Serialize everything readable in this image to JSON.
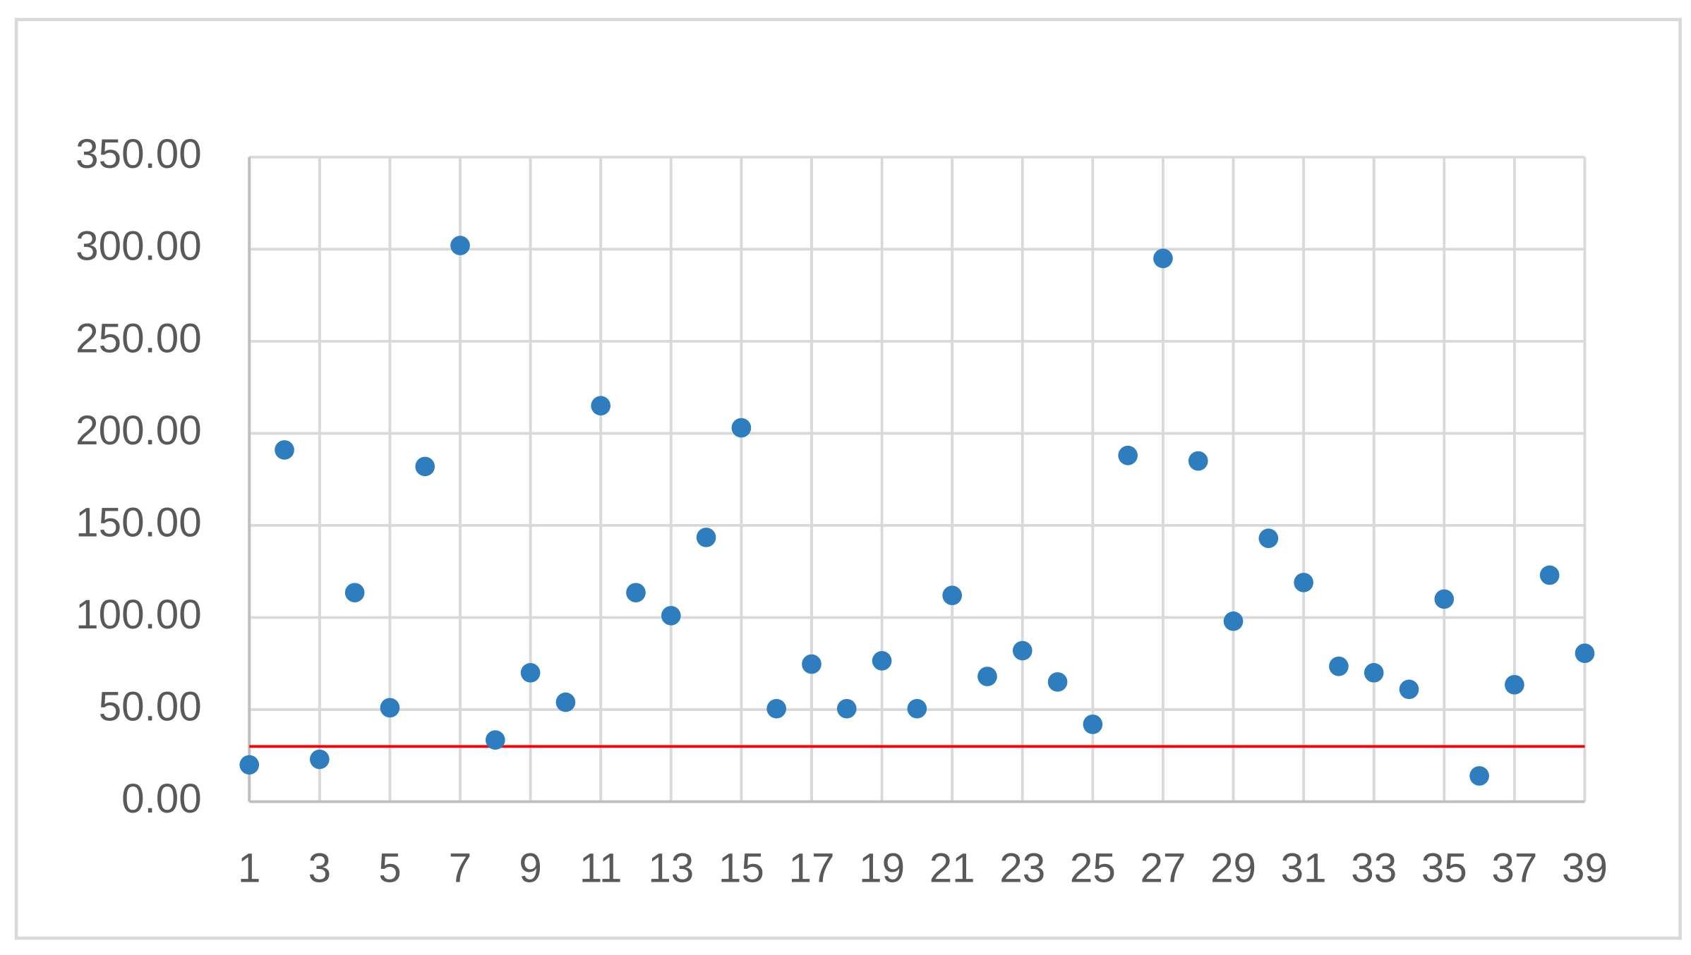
{
  "chart_data": {
    "type": "scatter",
    "x": [
      1,
      2,
      3,
      4,
      5,
      6,
      7,
      8,
      9,
      10,
      11,
      12,
      13,
      14,
      15,
      16,
      17,
      18,
      19,
      20,
      21,
      22,
      23,
      24,
      25,
      26,
      27,
      28,
      29,
      30,
      31,
      32,
      33,
      34,
      35,
      36,
      37,
      38,
      39
    ],
    "values": [
      20,
      191,
      23,
      113.5,
      51,
      182,
      302,
      33.5,
      70,
      54,
      215,
      113.5,
      101,
      143.5,
      203,
      50.5,
      74.7,
      50.5,
      76.5,
      50.5,
      112,
      68,
      82,
      65,
      42,
      188,
      295,
      185,
      98,
      143,
      119,
      73.5,
      70,
      61,
      110,
      14,
      63.5,
      123,
      80.6
    ],
    "color": "#2e7ebf",
    "xlim": [
      1,
      39
    ],
    "xticks": [
      1,
      3,
      5,
      7,
      9,
      11,
      13,
      15,
      17,
      19,
      21,
      23,
      25,
      27,
      29,
      31,
      33,
      35,
      37,
      39
    ],
    "ylim": [
      0,
      350
    ],
    "yticks": [
      {
        "value": 0,
        "label": "0.00"
      },
      {
        "value": 50,
        "label": "50.00"
      },
      {
        "value": 100,
        "label": "100.00"
      },
      {
        "value": 150,
        "label": "150.00"
      },
      {
        "value": 200,
        "label": "200.00"
      },
      {
        "value": 250,
        "label": "250.00"
      },
      {
        "value": 300,
        "label": "300.00"
      },
      {
        "value": 350,
        "label": "350.00"
      }
    ],
    "grid": true,
    "reference_line": {
      "value": 30,
      "color": "#ff0000"
    }
  }
}
